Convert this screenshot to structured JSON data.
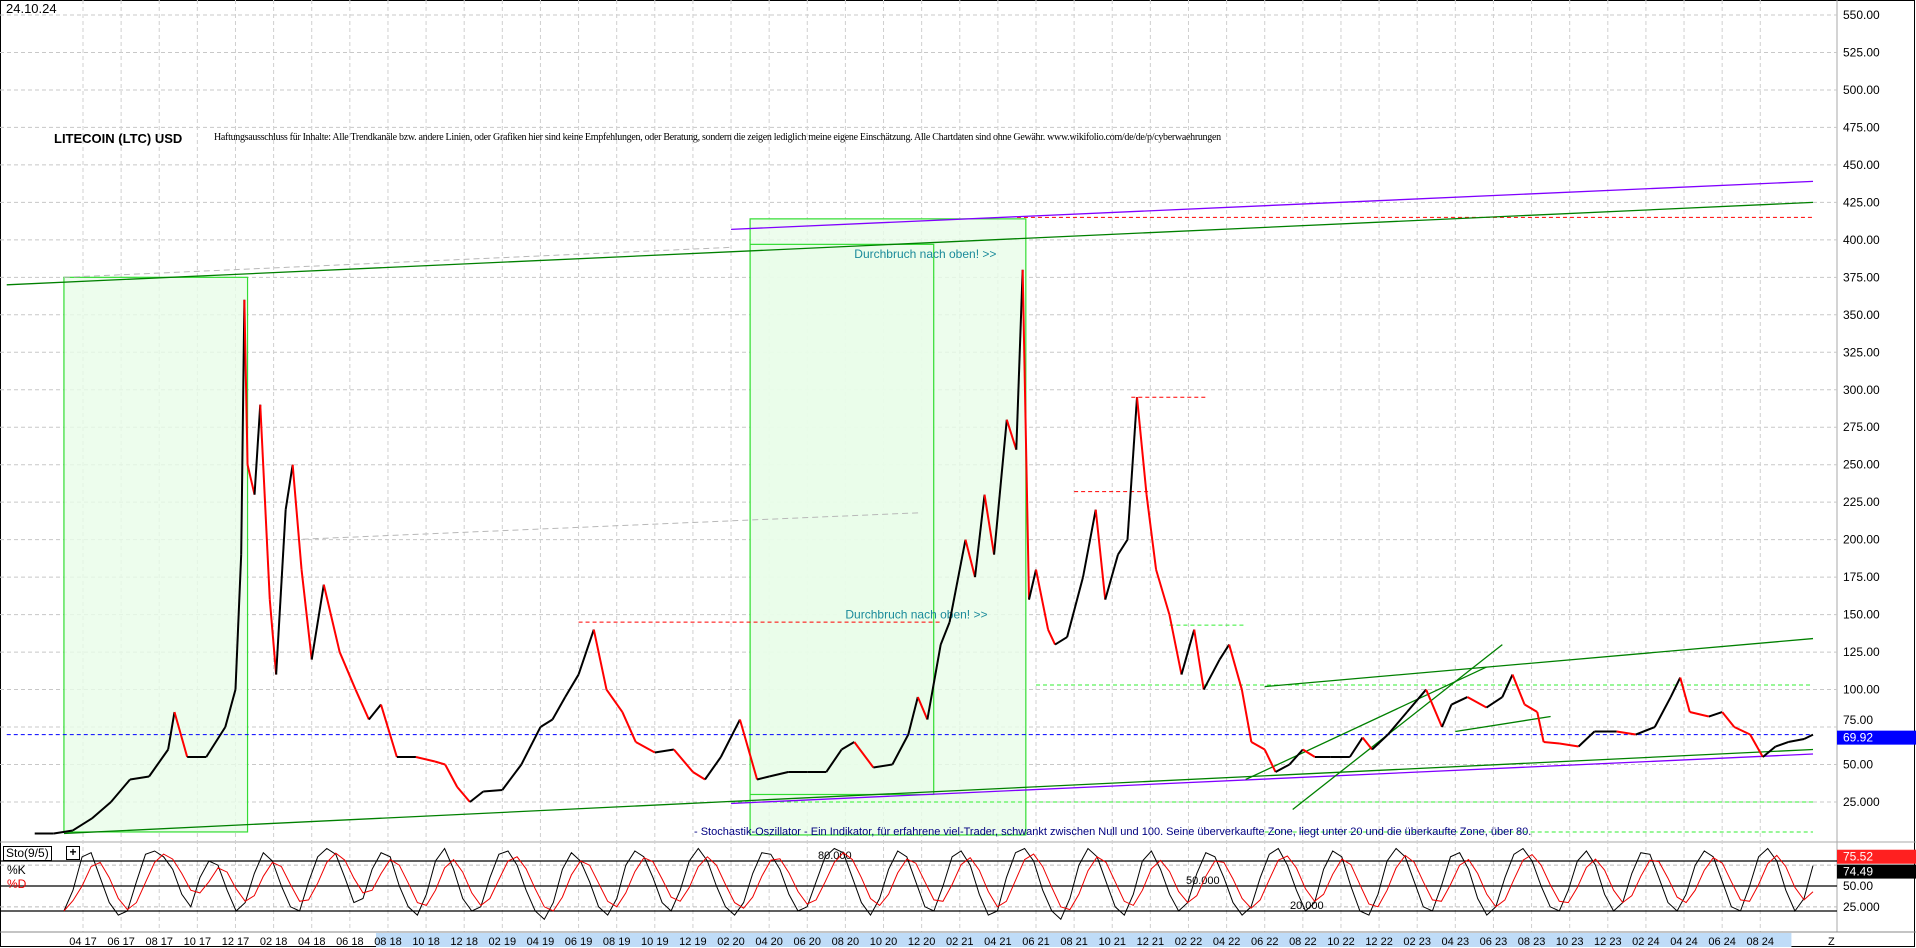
{
  "header": {
    "date": "24.10.24",
    "title": "LITECOIN (LTC) USD",
    "disclaimer": "Haftungsausschluss für Inhalte: Alle Trendkanäle bzw. andere Linien, oder Grafiken hier sind keine Empfehlungen, oder Beratung, sondern die zeigen lediglich meine eigene Einschätzung. Alle Chartdaten sind ohne Gewähr.  www.wikifolio.com/de/de/p/cyberwaehrungen"
  },
  "annotations": {
    "breakout_1": "Durchbruch nach oben! >>",
    "breakout_2": "Durchbruch nach oben! >>",
    "stochastic_note": "- Stochastik-Oszillator - Ein Indikator, für erfahrene viel-Trader, schwankt zwischen Null und 100. Seine überverkaufte Zone, liegt unter 20 und die überkaufte Zone, über 80."
  },
  "colors": {
    "price_up": "#000000",
    "price_down": "#ff0000",
    "trend_green": "#008000",
    "trend_purple": "#8000ff",
    "zone_fill": "#e8fce8",
    "zone_border": "#33dd33",
    "resistance_red": "#ff0000",
    "support_lime": "#33ee33",
    "last_price_bg": "#0000ff",
    "axis_band": "#bfdcf8"
  },
  "chart_data": [
    {
      "type": "candlestick",
      "title": "LITECOIN (LTC) USD",
      "ylim": [
        0,
        550
      ],
      "grid": true,
      "y_ticks": [
        "25.000",
        "50.00",
        "75.00",
        "100.00",
        "125.00",
        "150.00",
        "175.00",
        "200.00",
        "225.00",
        "250.00",
        "275.00",
        "300.00",
        "325.00",
        "350.00",
        "375.00",
        "400.00",
        "425.00",
        "450.00",
        "475.00",
        "500.00",
        "525.00",
        "550.00"
      ],
      "y_tick_values": [
        25,
        50,
        75,
        100,
        125,
        150,
        175,
        200,
        225,
        250,
        275,
        300,
        325,
        350,
        375,
        400,
        425,
        450,
        475,
        500,
        525,
        550
      ],
      "last_price": "69.92",
      "x_ticks": [
        "04 17",
        "06 17",
        "08 17",
        "10 17",
        "12 17",
        "02 18",
        "04 18",
        "06 18",
        "08 18",
        "10 18",
        "12 18",
        "02 19",
        "04 19",
        "06 19",
        "08 19",
        "10 19",
        "12 19",
        "02 20",
        "04 20",
        "06 20",
        "08 20",
        "10 20",
        "12 20",
        "02 21",
        "04 21",
        "06 21",
        "08 21",
        "10 21",
        "12 21",
        "02 22",
        "04 22",
        "06 22",
        "08 22",
        "10 22",
        "12 22",
        "02 23",
        "04 23",
        "06 23",
        "08 23",
        "10 23",
        "12 23",
        "02 24",
        "04 24",
        "06 24",
        "08 24"
      ],
      "x_end_label": "Z",
      "series": [
        [
          "2017-01-15",
          4
        ],
        [
          "2017-02-15",
          4
        ],
        [
          "2017-03-15",
          6
        ],
        [
          "2017-04-15",
          14
        ],
        [
          "2017-05-15",
          25
        ],
        [
          "2017-06-15",
          40
        ],
        [
          "2017-07-15",
          42
        ],
        [
          "2017-08-15",
          60
        ],
        [
          "2017-08-25",
          85
        ],
        [
          "2017-09-15",
          55
        ],
        [
          "2017-10-15",
          55
        ],
        [
          "2017-11-15",
          75
        ],
        [
          "2017-12-01",
          100
        ],
        [
          "2017-12-10",
          190
        ],
        [
          "2017-12-15",
          360
        ],
        [
          "2017-12-20",
          250
        ],
        [
          "2017-12-31",
          230
        ],
        [
          "2018-01-10",
          290
        ],
        [
          "2018-01-25",
          160
        ],
        [
          "2018-02-05",
          110
        ],
        [
          "2018-02-20",
          220
        ],
        [
          "2018-03-01",
          250
        ],
        [
          "2018-03-15",
          180
        ],
        [
          "2018-04-01",
          120
        ],
        [
          "2018-04-20",
          170
        ],
        [
          "2018-05-15",
          125
        ],
        [
          "2018-06-10",
          100
        ],
        [
          "2018-07-01",
          80
        ],
        [
          "2018-07-20",
          90
        ],
        [
          "2018-08-15",
          55
        ],
        [
          "2018-09-15",
          55
        ],
        [
          "2018-10-15",
          52
        ],
        [
          "2018-11-01",
          50
        ],
        [
          "2018-11-20",
          35
        ],
        [
          "2018-12-10",
          25
        ],
        [
          "2018-12-31",
          32
        ],
        [
          "2019-02-01",
          33
        ],
        [
          "2019-03-01",
          50
        ],
        [
          "2019-04-01",
          75
        ],
        [
          "2019-04-20",
          80
        ],
        [
          "2019-05-10",
          95
        ],
        [
          "2019-06-01",
          110
        ],
        [
          "2019-06-25",
          140
        ],
        [
          "2019-07-15",
          100
        ],
        [
          "2019-08-10",
          85
        ],
        [
          "2019-09-01",
          65
        ],
        [
          "2019-10-01",
          58
        ],
        [
          "2019-11-01",
          60
        ],
        [
          "2019-12-01",
          45
        ],
        [
          "2019-12-20",
          40
        ],
        [
          "2020-01-15",
          55
        ],
        [
          "2020-02-15",
          80
        ],
        [
          "2020-03-12",
          40
        ],
        [
          "2020-04-01",
          42
        ],
        [
          "2020-05-01",
          45
        ],
        [
          "2020-06-01",
          45
        ],
        [
          "2020-07-01",
          45
        ],
        [
          "2020-07-25",
          60
        ],
        [
          "2020-08-15",
          65
        ],
        [
          "2020-09-15",
          48
        ],
        [
          "2020-10-15",
          50
        ],
        [
          "2020-11-10",
          70
        ],
        [
          "2020-11-25",
          95
        ],
        [
          "2020-12-10",
          80
        ],
        [
          "2020-12-31",
          130
        ],
        [
          "2021-01-15",
          145
        ],
        [
          "2021-02-10",
          200
        ],
        [
          "2021-02-25",
          175
        ],
        [
          "2021-03-10",
          230
        ],
        [
          "2021-03-25",
          190
        ],
        [
          "2021-04-15",
          280
        ],
        [
          "2021-04-30",
          260
        ],
        [
          "2021-05-10",
          380
        ],
        [
          "2021-05-20",
          160
        ],
        [
          "2021-06-01",
          180
        ],
        [
          "2021-06-20",
          140
        ],
        [
          "2021-07-01",
          130
        ],
        [
          "2021-07-20",
          135
        ],
        [
          "2021-08-15",
          175
        ],
        [
          "2021-09-05",
          220
        ],
        [
          "2021-09-20",
          160
        ],
        [
          "2021-10-10",
          190
        ],
        [
          "2021-10-25",
          200
        ],
        [
          "2021-11-10",
          295
        ],
        [
          "2021-11-25",
          230
        ],
        [
          "2021-12-10",
          180
        ],
        [
          "2021-12-31",
          150
        ],
        [
          "2022-01-20",
          110
        ],
        [
          "2022-02-10",
          140
        ],
        [
          "2022-02-25",
          100
        ],
        [
          "2022-03-20",
          120
        ],
        [
          "2022-04-05",
          130
        ],
        [
          "2022-04-25",
          100
        ],
        [
          "2022-05-10",
          65
        ],
        [
          "2022-06-01",
          60
        ],
        [
          "2022-06-18",
          45
        ],
        [
          "2022-07-10",
          50
        ],
        [
          "2022-08-01",
          60
        ],
        [
          "2022-08-20",
          55
        ],
        [
          "2022-09-15",
          55
        ],
        [
          "2022-10-15",
          55
        ],
        [
          "2022-11-05",
          68
        ],
        [
          "2022-11-20",
          60
        ],
        [
          "2022-12-15",
          70
        ],
        [
          "2023-01-15",
          85
        ],
        [
          "2023-02-15",
          100
        ],
        [
          "2023-03-10",
          75
        ],
        [
          "2023-03-25",
          90
        ],
        [
          "2023-04-20",
          95
        ],
        [
          "2023-05-20",
          88
        ],
        [
          "2023-06-15",
          95
        ],
        [
          "2023-07-01",
          110
        ],
        [
          "2023-07-20",
          90
        ],
        [
          "2023-08-10",
          85
        ],
        [
          "2023-08-20",
          65
        ],
        [
          "2023-09-15",
          64
        ],
        [
          "2023-10-15",
          62
        ],
        [
          "2023-11-10",
          72
        ],
        [
          "2023-12-15",
          72
        ],
        [
          "2024-01-15",
          70
        ],
        [
          "2024-02-15",
          75
        ],
        [
          "2024-03-10",
          95
        ],
        [
          "2024-03-25",
          108
        ],
        [
          "2024-04-10",
          85
        ],
        [
          "2024-05-10",
          82
        ],
        [
          "2024-06-01",
          85
        ],
        [
          "2024-06-20",
          75
        ],
        [
          "2024-07-15",
          70
        ],
        [
          "2024-08-05",
          55
        ],
        [
          "2024-08-25",
          62
        ],
        [
          "2024-09-15",
          65
        ],
        [
          "2024-10-10",
          67
        ],
        [
          "2024-10-24",
          69.92
        ]
      ],
      "trendlines": [
        {
          "kind": "green",
          "from": [
            "2016-12-01",
            370
          ],
          "to": [
            "2024-10-24",
            425
          ]
        },
        {
          "kind": "purple",
          "from": [
            "2020-02-01",
            407
          ],
          "to": [
            "2024-10-24",
            439
          ]
        },
        {
          "kind": "green",
          "from": [
            "2017-03-01",
            4
          ],
          "to": [
            "2024-10-24",
            60
          ]
        },
        {
          "kind": "purple",
          "from": [
            "2020-02-01",
            24
          ],
          "to": [
            "2024-10-24",
            57
          ]
        },
        {
          "kind": "green",
          "from": [
            "2022-06-01",
            102
          ],
          "to": [
            "2024-10-24",
            134
          ]
        },
        {
          "kind": "green",
          "from": [
            "2022-07-15",
            20
          ],
          "to": [
            "2023-06-15",
            130
          ]
        },
        {
          "kind": "green",
          "from": [
            "2022-05-01",
            40
          ],
          "to": [
            "2023-05-20",
            115
          ]
        },
        {
          "kind": "green",
          "from": [
            "2023-04-01",
            72
          ],
          "to": [
            "2023-09-01",
            82
          ]
        },
        {
          "kind": "grey",
          "from": [
            "2017-03-01",
            375
          ],
          "to": [
            "2020-02-01",
            395
          ]
        },
        {
          "kind": "grey",
          "from": [
            "2018-03-01",
            200
          ],
          "to": [
            "2020-12-01",
            218
          ]
        }
      ],
      "levels": [
        {
          "kind": "red",
          "value": 415,
          "from": "2021-05-01",
          "to": "2024-10-24"
        },
        {
          "kind": "red",
          "value": 145,
          "from": "2019-06-01",
          "to": "2021-01-01"
        },
        {
          "kind": "red",
          "value": 295,
          "from": "2021-11-01",
          "to": "2022-03-01"
        },
        {
          "kind": "red",
          "value": 232,
          "from": "2021-08-01",
          "to": "2021-12-01"
        },
        {
          "kind": "lime",
          "value": 103,
          "from": "2021-06-01",
          "to": "2024-10-24"
        },
        {
          "kind": "lime",
          "value": 143,
          "from": "2022-01-01",
          "to": "2022-05-01"
        },
        {
          "kind": "lime",
          "value": 25,
          "from": "2020-02-01",
          "to": "2024-10-24"
        },
        {
          "kind": "lime",
          "value": 5,
          "from": "2022-06-01",
          "to": "2024-10-24"
        },
        {
          "kind": "blue",
          "value": 69.92,
          "from": "2016-12-01",
          "to": "2024-10-24"
        }
      ],
      "zones": [
        {
          "from": "2017-03-01",
          "to": "2017-12-20",
          "low": 5,
          "high": 375
        },
        {
          "from": "2020-03-01",
          "to": "2021-05-15",
          "low": 3,
          "high": 414
        },
        {
          "from": "2020-03-01",
          "to": "2020-12-20",
          "low": 30,
          "high": 397
        }
      ]
    },
    {
      "type": "line",
      "title": "Sto(9/5)",
      "legend": [
        "%K",
        "%D"
      ],
      "ylim": [
        0,
        100
      ],
      "levels": [
        80,
        50,
        20
      ],
      "level_labels": [
        "80.000",
        "50.000",
        "20.000"
      ],
      "axis_labels": [
        "50.00",
        "25.000"
      ],
      "last_d": "75.52",
      "last_k": "74.49",
      "k_values": [
        20,
        45,
        85,
        90,
        60,
        30,
        15,
        20,
        55,
        88,
        92,
        85,
        70,
        40,
        25,
        60,
        80,
        75,
        45,
        20,
        30,
        65,
        90,
        80,
        50,
        25,
        20,
        55,
        85,
        95,
        88,
        60,
        30,
        35,
        70,
        90,
        85,
        50,
        25,
        15,
        40,
        80,
        95,
        70,
        35,
        20,
        25,
        60,
        88,
        92,
        75,
        45,
        20,
        10,
        30,
        70,
        90,
        80,
        55,
        25,
        15,
        35,
        75,
        92,
        85,
        60,
        30,
        20,
        45,
        80,
        95,
        80,
        50,
        25,
        15,
        30,
        65,
        90,
        88,
        70,
        40,
        20,
        25,
        55,
        85,
        95,
        90,
        60,
        30,
        15,
        35,
        70,
        92,
        85,
        55,
        25,
        20,
        50,
        85,
        92,
        75,
        40,
        15,
        20,
        60,
        90,
        95,
        80,
        45,
        20,
        10,
        35,
        75,
        95,
        85,
        55,
        25,
        15,
        40,
        80,
        92,
        70,
        40,
        20,
        30,
        65,
        90,
        85,
        60,
        30,
        15,
        25,
        60,
        88,
        95,
        75,
        45,
        20,
        30,
        70,
        92,
        85,
        50,
        20,
        15,
        40,
        80,
        95,
        85,
        55,
        25,
        20,
        50,
        85,
        90,
        70,
        35,
        15,
        25,
        60,
        88,
        95,
        80,
        50,
        25,
        20,
        45,
        80,
        92,
        75,
        40,
        20,
        30,
        65,
        90,
        88,
        60,
        30,
        20,
        40,
        75,
        92,
        85,
        55,
        25,
        20,
        50,
        85,
        95,
        80,
        45,
        20,
        35,
        74.49
      ]
    }
  ]
}
